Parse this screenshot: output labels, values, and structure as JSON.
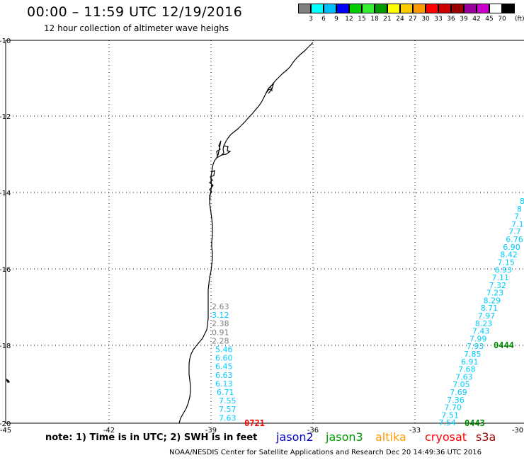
{
  "title": "00:00 – 11:59 UTC 12/19/2016",
  "subtitle": "12 hour collection of altimeter wave heighs",
  "scale": {
    "colors": [
      "#808080",
      "#00ffff",
      "#00bfff",
      "#0000ff",
      "#00cc00",
      "#33ee33",
      "#009900",
      "#ffff00",
      "#ffcc00",
      "#ff9900",
      "#ff0000",
      "#cc0000",
      "#990000",
      "#990099",
      "#cc00cc",
      "#ffffff",
      "#000000"
    ],
    "labels": [
      "3",
      "6",
      "9",
      "12",
      "15",
      "18",
      "21",
      "24",
      "27",
      "30",
      "33",
      "36",
      "39",
      "42",
      "45",
      "70"
    ],
    "unit": "(ft)"
  },
  "axes": {
    "y_ticks": [
      "-10",
      "-12",
      "-14",
      "-16",
      "-18",
      "-20"
    ],
    "x_ticks": [
      "-45",
      "-42",
      "-39",
      "-36",
      "-33",
      "-30"
    ]
  },
  "left_track": {
    "values": [
      "2.63",
      "3.12",
      "2.38",
      "0.91",
      "2.28",
      "5.46",
      "6.60",
      "6.45",
      "6.63",
      "6.13",
      "6.71",
      "7.55",
      "7.57",
      "7.63"
    ],
    "colors": [
      "#808080",
      "#00ccff",
      "#808080",
      "#808080",
      "#808080",
      "#00ccff",
      "#00ccff",
      "#00ccff",
      "#00ccff",
      "#00ccff",
      "#00ccff",
      "#00ccff",
      "#00ccff",
      "#00ccff"
    ],
    "time_tag": "0721"
  },
  "right_track": {
    "values": [
      "8",
      "8",
      "7.",
      "7.1",
      "7.7",
      "6.76",
      "6.90",
      "8.42",
      "7.15",
      "6.93",
      "7.11",
      "7.32",
      "7.23",
      "8.29",
      "8.71",
      "7.97",
      "8.23",
      "7.43",
      "7.99",
      "7.93",
      "7.85",
      "6.91",
      "7.68",
      "7.63",
      "7.05",
      "7.69",
      "7.36",
      "7.70",
      "7.51",
      "7.54"
    ],
    "time_tag_upper": "0444",
    "time_tag_lower": "0443"
  },
  "note": "note: 1) Time is in UTC; 2) SWH is in feet",
  "satellites": [
    {
      "name": "jason2",
      "color": "#0000cc"
    },
    {
      "name": "jason3",
      "color": "#009900"
    },
    {
      "name": "altika",
      "color": "#ff9900"
    },
    {
      "name": "cryosat",
      "color": "#ff0000"
    },
    {
      "name": "s3a",
      "color": "#990000"
    }
  ],
  "footer": "NOAA/NESDIS Center for Satellite Applications and Research    Dec 20 14:49:36 UTC 2016"
}
